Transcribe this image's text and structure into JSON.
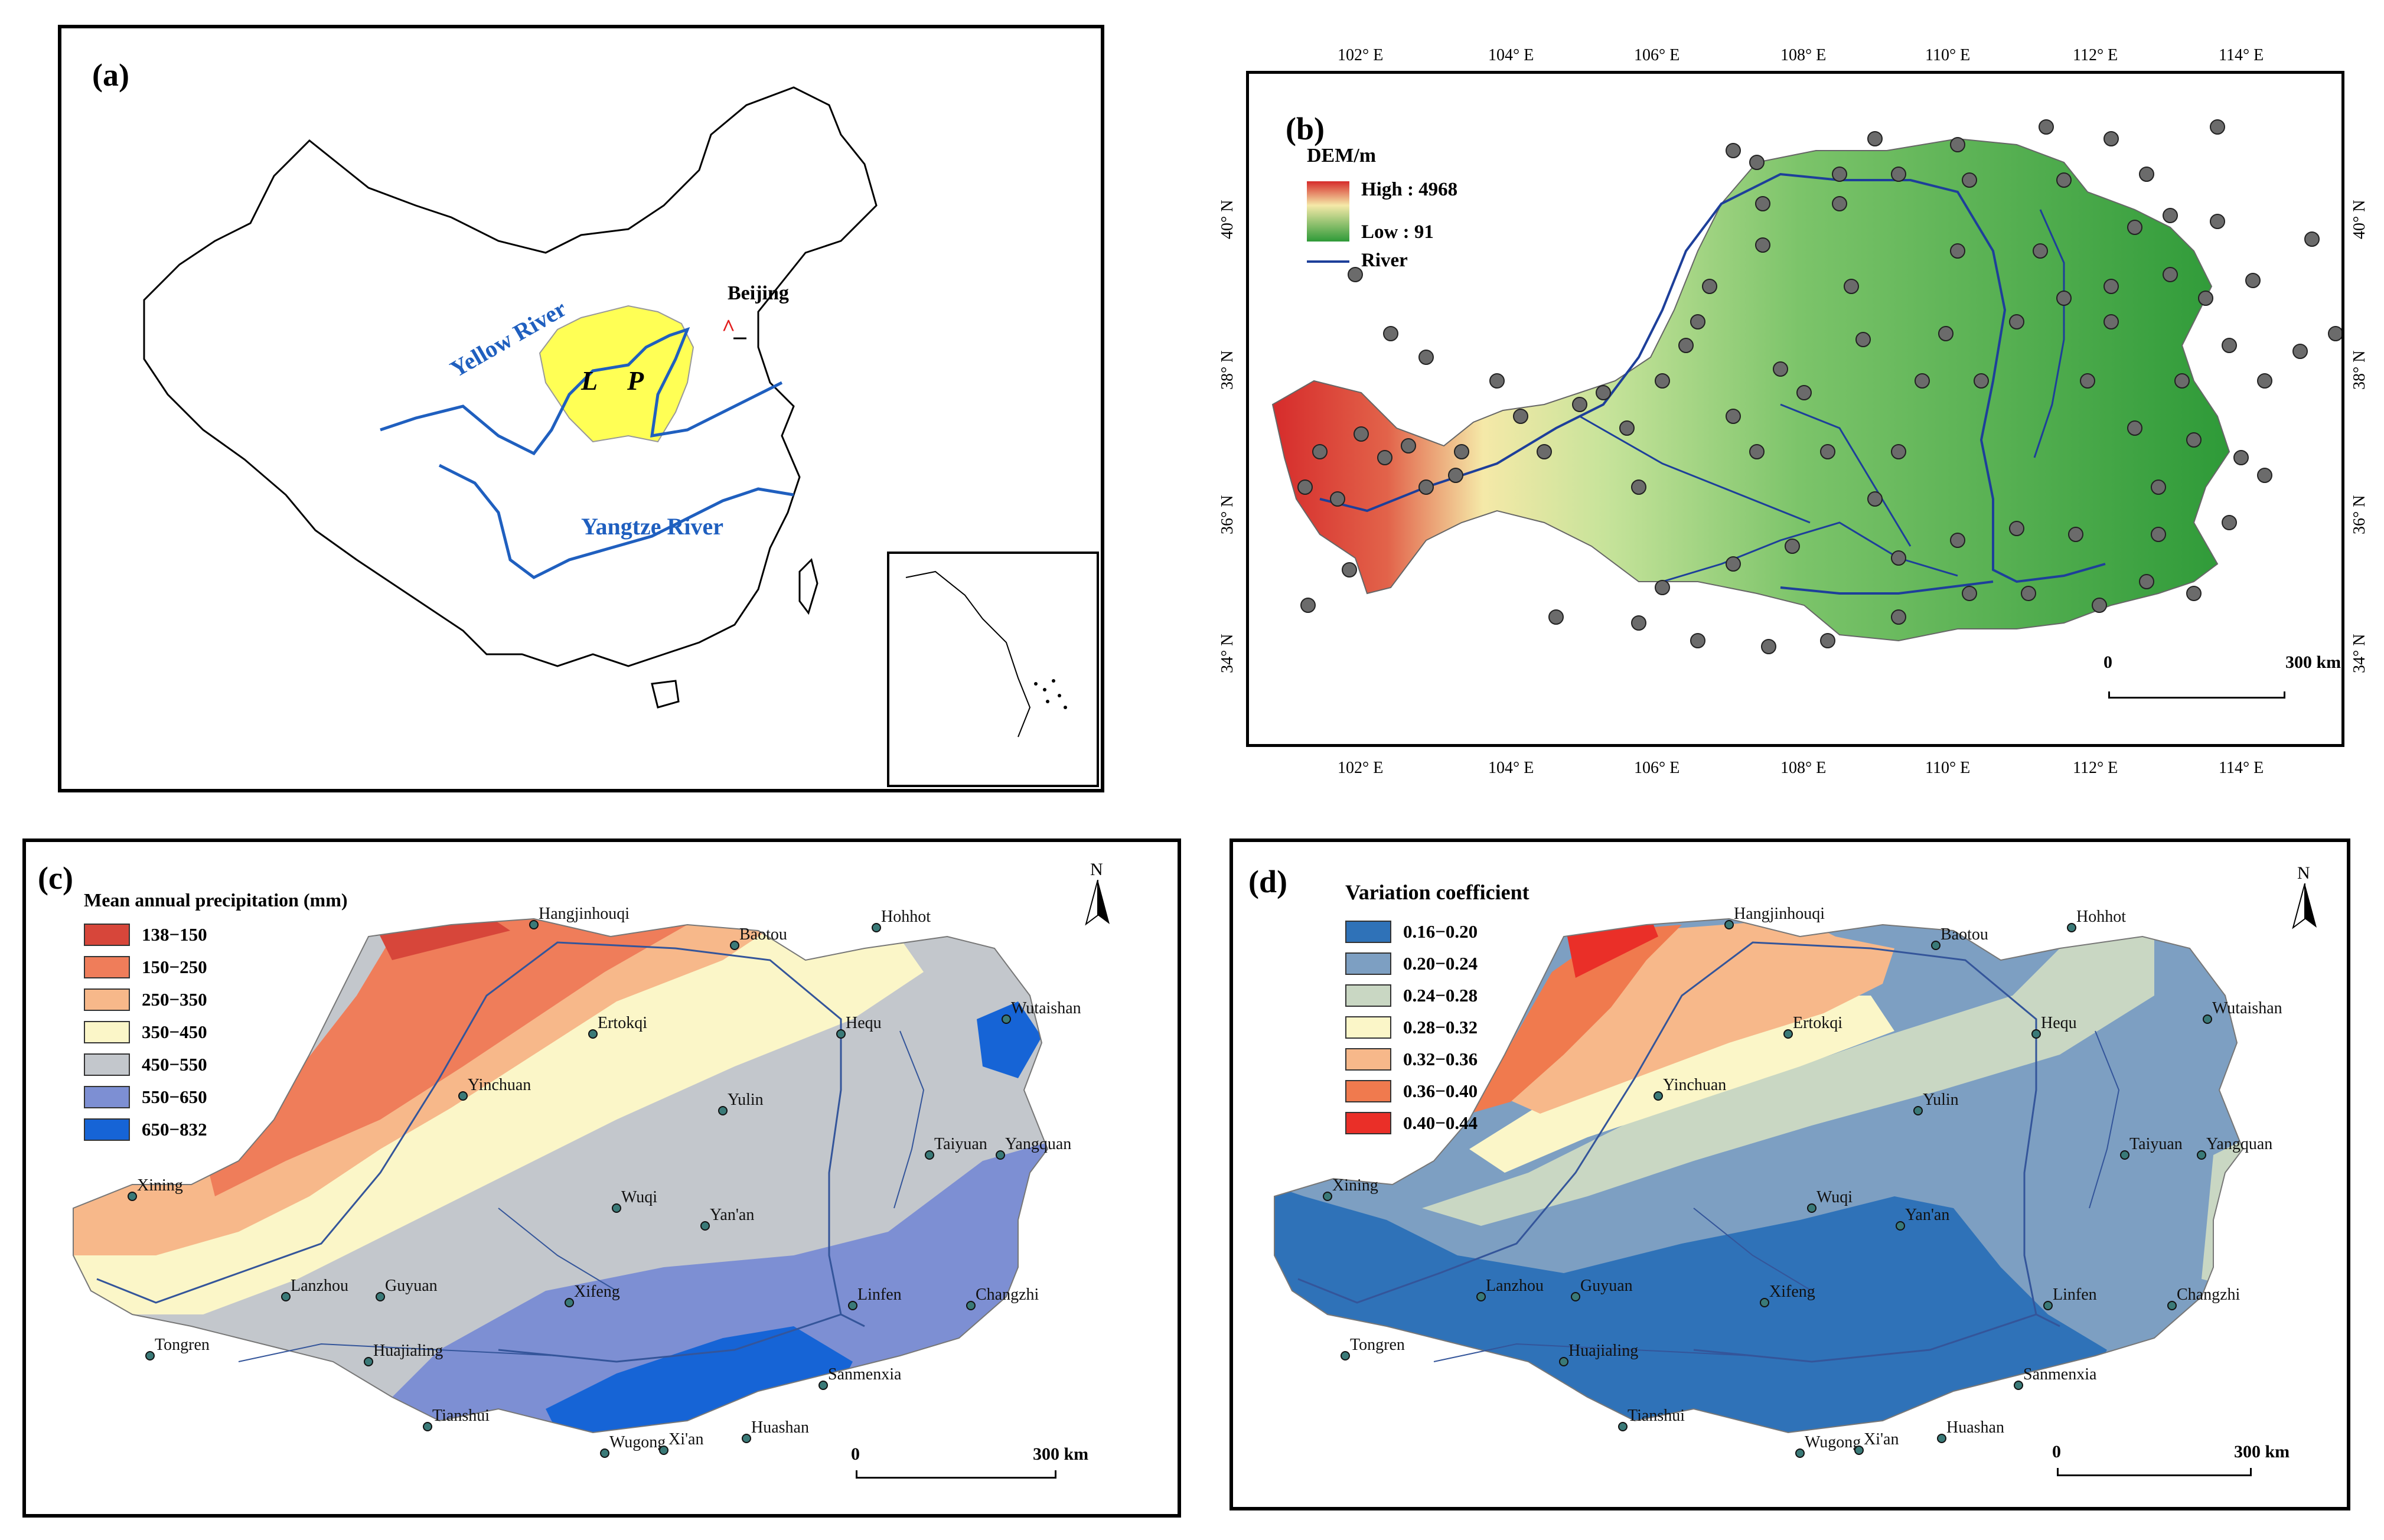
{
  "panel_a": {
    "label": "(a)",
    "beijing": "Beijing",
    "yellow_river": "Yellow River",
    "yangtze_river": "Yangtze River",
    "lp_l": "L",
    "lp_p": "P",
    "colors": {
      "plateau": "#ffff55",
      "river": "#1f5fbf"
    }
  },
  "panel_b": {
    "label": "(b)",
    "legend_title": "DEM/m",
    "legend_high": "High : 4968",
    "legend_low": "Low : 91",
    "legend_river": "River",
    "lon_labels": [
      "102° E",
      "104° E",
      "106° E",
      "108° E",
      "110° E",
      "112° E",
      "114° E"
    ],
    "lat_labels": [
      "34° N",
      "36° N",
      "38° N",
      "40° N"
    ],
    "scale_zero": "0",
    "scale_dist": "300 km",
    "colors": {
      "high": "#d62b2b",
      "mid": "#f5e9a8",
      "low": "#2e9a38"
    }
  },
  "panel_c": {
    "label": "(c)",
    "legend_title": "Mean annual precipitation (mm)",
    "classes": [
      {
        "label": "138−150",
        "color": "#d7463a"
      },
      {
        "label": "150−250",
        "color": "#ef7d5a"
      },
      {
        "label": "250−350",
        "color": "#f7b88a"
      },
      {
        "label": "350−450",
        "color": "#fbf6c8"
      },
      {
        "label": "450−550",
        "color": "#c3c7cc"
      },
      {
        "label": "550−650",
        "color": "#7d8fd3"
      },
      {
        "label": "650−832",
        "color": "#1664d6"
      }
    ],
    "north": "N",
    "scale_zero": "0",
    "scale_dist": "300 km"
  },
  "panel_d": {
    "label": "(d)",
    "legend_title": "Variation coefficient",
    "classes": [
      {
        "label": "0.16−0.20",
        "color": "#2f72b8"
      },
      {
        "label": "0.20−0.24",
        "color": "#7d9fc2"
      },
      {
        "label": "0.24−0.28",
        "color": "#c9d7c3"
      },
      {
        "label": "0.28−0.32",
        "color": "#fbf6c8"
      },
      {
        "label": "0.32−0.36",
        "color": "#f7b88a"
      },
      {
        "label": "0.36−0.40",
        "color": "#f07a4e"
      },
      {
        "label": "0.40−0.44",
        "color": "#ea2f28"
      }
    ],
    "north": "N",
    "scale_zero": "0",
    "scale_dist": "300 km"
  },
  "cities": [
    "Hangjinhouqi",
    "Baotou",
    "Hohhot",
    "Hequ",
    "Wutaishan",
    "Ertokqi",
    "Yinchuan",
    "Yulin",
    "Taiyuan",
    "Yangquan",
    "Xining",
    "Wuqi",
    "Yan'an",
    "Lanzhou",
    "Guyuan",
    "Xifeng",
    "Linfen",
    "Changzhi",
    "Tongren",
    "Huajialing",
    "Sanmenxia",
    "Tianshui",
    "Huashan",
    "Wugong",
    "Xi'an"
  ]
}
